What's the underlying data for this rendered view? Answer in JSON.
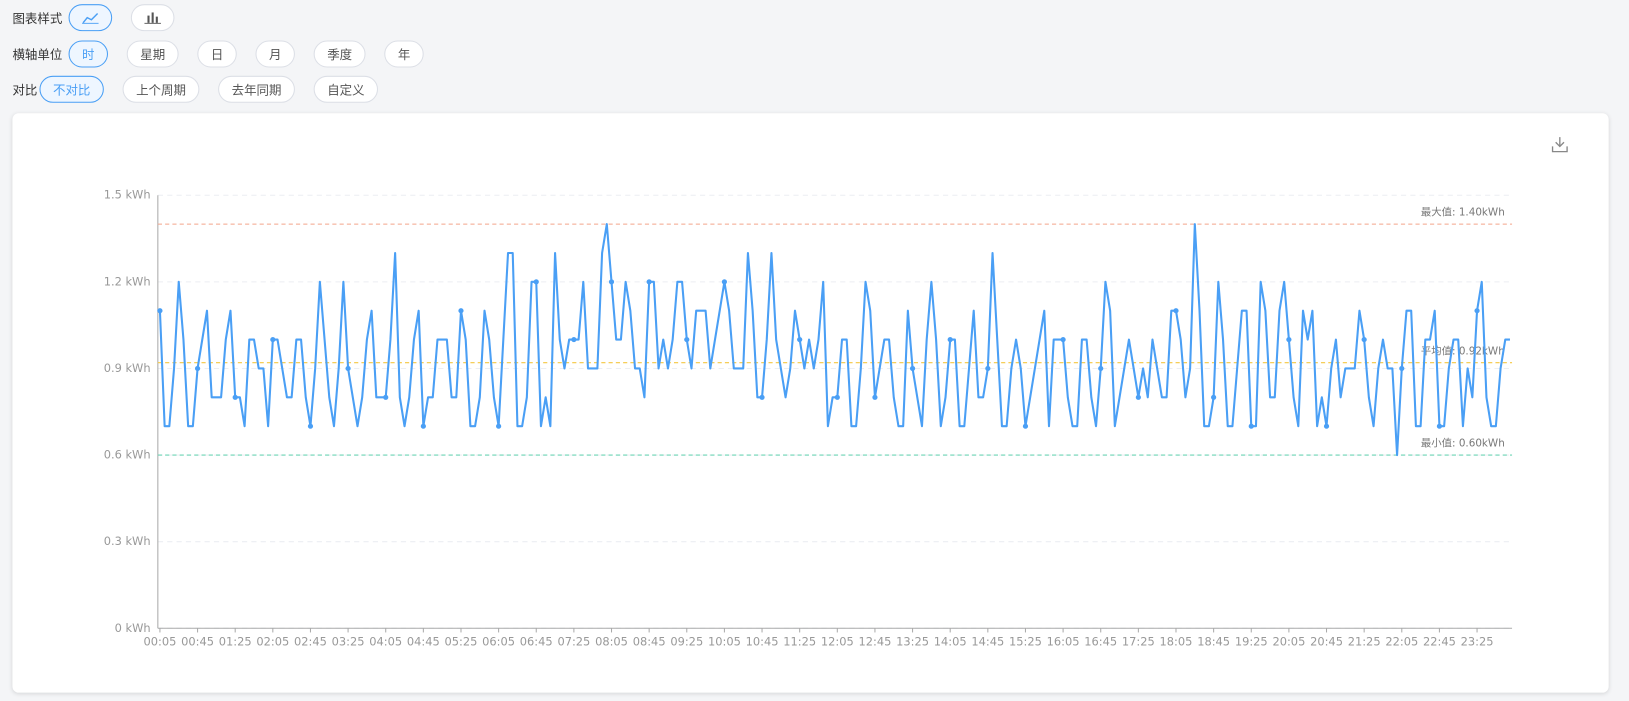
{
  "controls": {
    "chart_style": {
      "label": "图表样式",
      "selected": 0
    },
    "x_unit": {
      "label": "横轴单位",
      "options": [
        "时",
        "星期",
        "日",
        "月",
        "季度",
        "年"
      ],
      "selected": 0
    },
    "compare": {
      "label": "对比",
      "options": [
        "不对比",
        "上个周期",
        "去年同期",
        "自定义"
      ],
      "selected": 0
    }
  },
  "chart_data": {
    "type": "line",
    "categories": [
      "00:05",
      null,
      null,
      null,
      null,
      null,
      null,
      null,
      "00:45",
      null,
      null,
      null,
      null,
      null,
      null,
      null,
      "01:25",
      null,
      null,
      null,
      null,
      null,
      null,
      null,
      "02:05",
      null,
      null,
      null,
      null,
      null,
      null,
      null,
      "02:45",
      null,
      null,
      null,
      null,
      null,
      null,
      null,
      "03:25",
      null,
      null,
      null,
      null,
      null,
      null,
      null,
      "04:05",
      null,
      null,
      null,
      null,
      null,
      null,
      null,
      "04:45",
      null,
      null,
      null,
      null,
      null,
      null,
      null,
      "05:25",
      null,
      null,
      null,
      null,
      null,
      null,
      null,
      "06:05",
      null,
      null,
      null,
      null,
      null,
      null,
      null,
      "06:45",
      null,
      null,
      null,
      null,
      null,
      null,
      null,
      "07:25",
      null,
      null,
      null,
      null,
      null,
      null,
      null,
      "08:05",
      null,
      null,
      null,
      null,
      null,
      null,
      null,
      "08:45",
      null,
      null,
      null,
      null,
      null,
      null,
      null,
      "09:25",
      null,
      null,
      null,
      null,
      null,
      null,
      null,
      "10:05",
      null,
      null,
      null,
      null,
      null,
      null,
      null,
      "10:45",
      null,
      null,
      null,
      null,
      null,
      null,
      null,
      "11:25",
      null,
      null,
      null,
      null,
      null,
      null,
      null,
      "12:05",
      null,
      null,
      null,
      null,
      null,
      null,
      null,
      "12:45",
      null,
      null,
      null,
      null,
      null,
      null,
      null,
      "13:25",
      null,
      null,
      null,
      null,
      null,
      null,
      null,
      "14:05",
      null,
      null,
      null,
      null,
      null,
      null,
      null,
      "14:45",
      null,
      null,
      null,
      null,
      null,
      null,
      null,
      "15:25",
      null,
      null,
      null,
      null,
      null,
      null,
      null,
      "16:05",
      null,
      null,
      null,
      null,
      null,
      null,
      null,
      "16:45",
      null,
      null,
      null,
      null,
      null,
      null,
      null,
      "17:25",
      null,
      null,
      null,
      null,
      null,
      null,
      null,
      "18:05",
      null,
      null,
      null,
      null,
      null,
      null,
      null,
      "18:45",
      null,
      null,
      null,
      null,
      null,
      null,
      null,
      "19:25",
      null,
      null,
      null,
      null,
      null,
      null,
      null,
      "20:05",
      null,
      null,
      null,
      null,
      null,
      null,
      null,
      "20:45",
      null,
      null,
      null,
      null,
      null,
      null,
      null,
      "21:25",
      null,
      null,
      null,
      null,
      null,
      null,
      null,
      "22:05",
      null,
      null,
      null,
      null,
      null,
      null,
      null,
      "22:45",
      null,
      null,
      null,
      null,
      null,
      null,
      null,
      "23:25",
      null,
      null,
      null,
      null,
      null,
      null,
      null
    ],
    "series": [
      {
        "color": "#4a9ff5",
        "values": [
          1.1,
          0.7,
          0.7,
          0.9,
          1.2,
          1.0,
          0.7,
          0.7,
          0.9,
          1.0,
          1.1,
          0.8,
          0.8,
          0.8,
          1.0,
          1.1,
          0.8,
          0.8,
          0.7,
          1.0,
          1.0,
          0.9,
          0.9,
          0.7,
          1.0,
          1.0,
          0.9,
          0.8,
          0.8,
          1.0,
          1.0,
          0.8,
          0.7,
          0.9,
          1.2,
          1.0,
          0.8,
          0.7,
          0.9,
          1.2,
          0.9,
          0.8,
          0.7,
          0.8,
          1.0,
          1.1,
          0.8,
          0.8,
          0.8,
          1.0,
          1.3,
          0.8,
          0.7,
          0.8,
          1.0,
          1.1,
          0.7,
          0.8,
          0.8,
          1.0,
          1.0,
          1.0,
          0.8,
          0.8,
          1.1,
          1.0,
          0.7,
          0.7,
          0.8,
          1.1,
          1.0,
          0.8,
          0.7,
          1.0,
          1.3,
          1.3,
          0.7,
          0.7,
          0.8,
          1.2,
          1.2,
          0.7,
          0.8,
          0.7,
          1.3,
          1.0,
          0.9,
          1.0,
          1.0,
          1.0,
          1.2,
          0.9,
          0.9,
          0.9,
          1.3,
          1.4,
          1.2,
          1.0,
          1.0,
          1.2,
          1.1,
          0.9,
          0.9,
          0.8,
          1.2,
          1.2,
          0.9,
          1.0,
          0.9,
          1.0,
          1.2,
          1.2,
          1.0,
          0.9,
          1.1,
          1.1,
          1.1,
          0.9,
          1.0,
          1.1,
          1.2,
          1.1,
          0.9,
          0.9,
          0.9,
          1.3,
          1.1,
          0.8,
          0.8,
          1.0,
          1.3,
          1.0,
          0.9,
          0.8,
          0.9,
          1.1,
          1.0,
          0.9,
          1.0,
          0.9,
          1.0,
          1.2,
          0.7,
          0.8,
          0.8,
          1.0,
          1.0,
          0.7,
          0.7,
          0.9,
          1.2,
          1.1,
          0.8,
          0.9,
          1.0,
          1.0,
          0.8,
          0.7,
          0.7,
          1.1,
          0.9,
          0.8,
          0.7,
          1.0,
          1.2,
          1.0,
          0.7,
          0.8,
          1.0,
          1.0,
          0.7,
          0.7,
          0.9,
          1.1,
          0.8,
          0.8,
          0.9,
          1.3,
          1.0,
          0.7,
          0.7,
          0.9,
          1.0,
          0.9,
          0.7,
          0.8,
          0.9,
          1.0,
          1.1,
          0.7,
          1.0,
          1.0,
          1.0,
          0.8,
          0.7,
          0.7,
          1.0,
          1.0,
          0.8,
          0.7,
          0.9,
          1.2,
          1.1,
          0.7,
          0.8,
          0.9,
          1.0,
          0.9,
          0.8,
          0.9,
          0.8,
          1.0,
          0.9,
          0.8,
          0.8,
          1.1,
          1.1,
          1.0,
          0.8,
          0.9,
          1.4,
          1.1,
          0.7,
          0.7,
          0.8,
          1.2,
          1.0,
          0.7,
          0.7,
          0.9,
          1.1,
          1.1,
          0.7,
          0.7,
          1.2,
          1.1,
          0.8,
          0.8,
          1.1,
          1.2,
          1.0,
          0.8,
          0.7,
          1.1,
          1.0,
          1.1,
          0.7,
          0.8,
          0.7,
          0.9,
          1.0,
          0.8,
          0.9,
          0.9,
          0.9,
          1.1,
          1.0,
          0.8,
          0.7,
          0.9,
          1.0,
          0.9,
          0.9,
          0.6,
          0.9,
          1.1,
          1.1,
          0.7,
          0.7,
          1.0,
          1.0,
          1.1,
          0.7,
          0.7,
          0.9,
          1.0,
          1.0,
          0.7,
          0.9,
          0.8,
          1.1,
          1.2,
          0.8,
          0.7,
          0.7,
          0.9,
          1.0,
          1.0
        ]
      }
    ],
    "ylim": [
      0,
      1.5
    ],
    "yticks": [
      {
        "value": 0,
        "label": "0 kWh"
      },
      {
        "value": 0.3,
        "label": "0.3 kWh"
      },
      {
        "value": 0.6,
        "label": "0.6 kWh"
      },
      {
        "value": 0.9,
        "label": "0.9 kWh"
      },
      {
        "value": 1.2,
        "label": "1.2 kWh"
      },
      {
        "value": 1.5,
        "label": "1.5 kWh"
      }
    ],
    "grid": true,
    "mark_lines": [
      {
        "value": 1.4,
        "label": "最大值: 1.40kWh",
        "color": "#f4a58a"
      },
      {
        "value": 0.92,
        "label": "平均值: 0.92kWh",
        "color": "#f5c842"
      },
      {
        "value": 0.6,
        "label": "最小值: 0.60kWh",
        "color": "#6cd4b4"
      }
    ]
  }
}
